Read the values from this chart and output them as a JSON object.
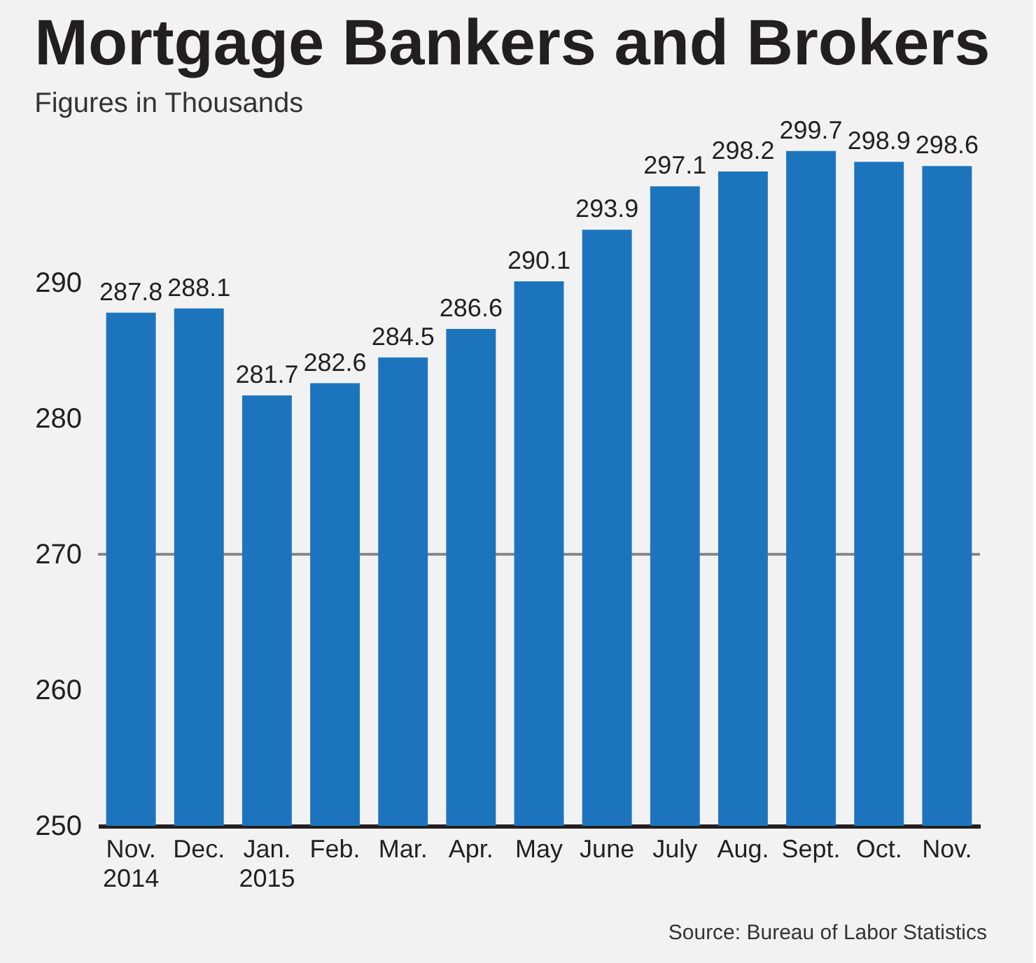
{
  "chart_data": {
    "type": "bar",
    "title": "Mortgage Bankers and Brokers",
    "subtitle": "Figures in Thousands",
    "categories": [
      "Nov.\n2014",
      "Dec.",
      "Jan.\n2015",
      "Feb.",
      "Mar.",
      "Apr.",
      "May",
      "June",
      "July",
      "Aug.",
      "Sept.",
      "Oct.",
      "Nov."
    ],
    "values": [
      287.8,
      288.1,
      281.7,
      282.6,
      284.5,
      286.6,
      290.1,
      293.9,
      297.1,
      298.2,
      299.7,
      298.9,
      298.6
    ],
    "color": "#1c75bc",
    "ylim": [
      250,
      300
    ],
    "yticks": [
      250,
      260,
      270,
      280,
      290
    ],
    "grid": false,
    "data_labels": true,
    "ref_lines": [
      {
        "axis": "y",
        "value": 270,
        "color": "#888888"
      }
    ],
    "annotations": [
      "Source: Bureau of Labor Statistics"
    ]
  }
}
